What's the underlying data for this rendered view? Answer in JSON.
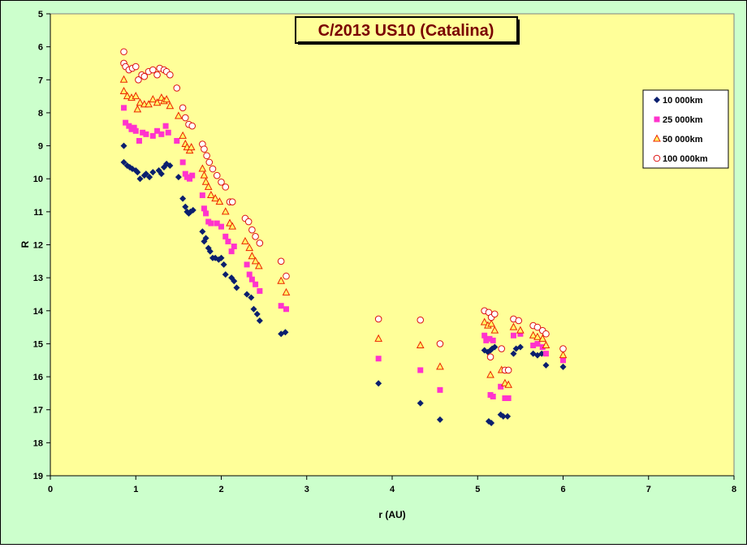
{
  "chart_data": {
    "type": "scatter",
    "title": "C/2013 US10 (Catalina)",
    "xlabel": "r (AU)",
    "ylabel": "R",
    "xlim": [
      0,
      8
    ],
    "ylim": [
      5,
      19
    ],
    "y_inverted": true,
    "x_ticks": [
      0,
      1,
      2,
      3,
      4,
      5,
      6,
      7,
      8
    ],
    "y_ticks": [
      5,
      6,
      7,
      8,
      9,
      10,
      11,
      12,
      13,
      14,
      15,
      16,
      17,
      18,
      19
    ],
    "grid": false,
    "legend_position": "top-right",
    "plot_background": "#ffff99",
    "outer_background": "#ccffcc",
    "series": [
      {
        "name": "10 000km",
        "marker": "diamond",
        "color": "#0a1f6e",
        "points": [
          [
            0.86,
            9.0
          ],
          [
            0.86,
            9.5
          ],
          [
            0.9,
            9.6
          ],
          [
            0.93,
            9.65
          ],
          [
            0.96,
            9.7
          ],
          [
            1.0,
            9.75
          ],
          [
            1.02,
            9.8
          ],
          [
            1.05,
            10.0
          ],
          [
            1.1,
            9.9
          ],
          [
            1.12,
            9.85
          ],
          [
            1.16,
            9.95
          ],
          [
            1.2,
            9.8
          ],
          [
            1.27,
            9.75
          ],
          [
            1.3,
            9.85
          ],
          [
            1.33,
            9.65
          ],
          [
            1.36,
            9.55
          ],
          [
            1.4,
            9.6
          ],
          [
            1.5,
            9.95
          ],
          [
            1.55,
            10.6
          ],
          [
            1.58,
            10.85
          ],
          [
            1.6,
            11.0
          ],
          [
            1.62,
            11.05
          ],
          [
            1.64,
            11.0
          ],
          [
            1.67,
            10.95
          ],
          [
            1.78,
            11.6
          ],
          [
            1.8,
            11.9
          ],
          [
            1.82,
            11.8
          ],
          [
            1.85,
            12.1
          ],
          [
            1.87,
            12.2
          ],
          [
            1.9,
            12.4
          ],
          [
            1.93,
            12.4
          ],
          [
            1.97,
            12.45
          ],
          [
            2.0,
            12.4
          ],
          [
            2.03,
            12.6
          ],
          [
            2.05,
            12.9
          ],
          [
            2.12,
            13.0
          ],
          [
            2.15,
            13.1
          ],
          [
            2.18,
            13.3
          ],
          [
            2.3,
            13.5
          ],
          [
            2.35,
            13.6
          ],
          [
            2.38,
            13.95
          ],
          [
            2.42,
            14.1
          ],
          [
            2.45,
            14.3
          ],
          [
            2.7,
            14.7
          ],
          [
            2.75,
            14.65
          ],
          [
            3.84,
            16.2
          ],
          [
            4.33,
            16.8
          ],
          [
            4.56,
            17.3
          ],
          [
            5.08,
            15.2
          ],
          [
            5.12,
            15.25
          ],
          [
            5.15,
            15.2
          ],
          [
            5.17,
            15.15
          ],
          [
            5.2,
            15.1
          ],
          [
            5.16,
            17.4
          ],
          [
            5.13,
            17.35
          ],
          [
            5.27,
            17.15
          ],
          [
            5.3,
            17.2
          ],
          [
            5.35,
            17.2
          ],
          [
            5.42,
            15.3
          ],
          [
            5.45,
            15.15
          ],
          [
            5.5,
            15.1
          ],
          [
            5.65,
            15.3
          ],
          [
            5.7,
            15.35
          ],
          [
            5.75,
            15.3
          ],
          [
            5.8,
            15.65
          ],
          [
            6.0,
            15.7
          ]
        ]
      },
      {
        "name": "25 000km",
        "marker": "square",
        "color": "#ff33cc",
        "points": [
          [
            0.86,
            7.85
          ],
          [
            0.88,
            8.3
          ],
          [
            0.92,
            8.4
          ],
          [
            0.95,
            8.5
          ],
          [
            0.98,
            8.45
          ],
          [
            1.0,
            8.55
          ],
          [
            1.04,
            8.85
          ],
          [
            1.08,
            8.6
          ],
          [
            1.12,
            8.65
          ],
          [
            1.2,
            8.7
          ],
          [
            1.25,
            8.55
          ],
          [
            1.3,
            8.65
          ],
          [
            1.35,
            8.4
          ],
          [
            1.38,
            8.6
          ],
          [
            1.48,
            8.85
          ],
          [
            1.55,
            9.5
          ],
          [
            1.58,
            9.85
          ],
          [
            1.6,
            9.95
          ],
          [
            1.63,
            10.0
          ],
          [
            1.66,
            9.9
          ],
          [
            1.78,
            10.5
          ],
          [
            1.8,
            10.9
          ],
          [
            1.82,
            11.05
          ],
          [
            1.85,
            11.3
          ],
          [
            1.88,
            11.35
          ],
          [
            1.95,
            11.35
          ],
          [
            2.0,
            11.45
          ],
          [
            2.05,
            11.75
          ],
          [
            2.08,
            11.9
          ],
          [
            2.12,
            12.2
          ],
          [
            2.15,
            12.05
          ],
          [
            2.3,
            12.6
          ],
          [
            2.33,
            12.9
          ],
          [
            2.36,
            13.05
          ],
          [
            2.4,
            13.2
          ],
          [
            2.45,
            13.4
          ],
          [
            2.7,
            13.85
          ],
          [
            2.76,
            13.95
          ],
          [
            3.84,
            15.45
          ],
          [
            4.33,
            15.8
          ],
          [
            4.56,
            16.4
          ],
          [
            5.08,
            14.75
          ],
          [
            5.1,
            14.9
          ],
          [
            5.14,
            14.85
          ],
          [
            5.18,
            14.9
          ],
          [
            5.15,
            16.55
          ],
          [
            5.18,
            16.6
          ],
          [
            5.27,
            16.3
          ],
          [
            5.32,
            16.65
          ],
          [
            5.36,
            16.65
          ],
          [
            5.42,
            14.75
          ],
          [
            5.5,
            14.7
          ],
          [
            5.65,
            15.05
          ],
          [
            5.7,
            15.0
          ],
          [
            5.76,
            15.1
          ],
          [
            5.8,
            15.3
          ],
          [
            6.0,
            15.5
          ]
        ]
      },
      {
        "name": "50 000km",
        "marker": "triangle",
        "color": "#ee2200",
        "points": [
          [
            0.86,
            7.0
          ],
          [
            0.86,
            7.35
          ],
          [
            0.9,
            7.5
          ],
          [
            0.95,
            7.55
          ],
          [
            1.0,
            7.5
          ],
          [
            1.02,
            7.9
          ],
          [
            1.05,
            7.7
          ],
          [
            1.1,
            7.75
          ],
          [
            1.15,
            7.75
          ],
          [
            1.2,
            7.6
          ],
          [
            1.25,
            7.7
          ],
          [
            1.3,
            7.55
          ],
          [
            1.33,
            7.65
          ],
          [
            1.36,
            7.6
          ],
          [
            1.4,
            7.8
          ],
          [
            1.5,
            8.1
          ],
          [
            1.55,
            8.7
          ],
          [
            1.58,
            8.95
          ],
          [
            1.6,
            9.05
          ],
          [
            1.63,
            9.15
          ],
          [
            1.65,
            9.05
          ],
          [
            1.78,
            9.7
          ],
          [
            1.8,
            9.9
          ],
          [
            1.82,
            10.1
          ],
          [
            1.85,
            10.25
          ],
          [
            1.88,
            10.5
          ],
          [
            1.93,
            10.6
          ],
          [
            1.98,
            10.7
          ],
          [
            2.05,
            11.0
          ],
          [
            2.1,
            11.35
          ],
          [
            2.13,
            11.45
          ],
          [
            2.28,
            11.9
          ],
          [
            2.33,
            12.1
          ],
          [
            2.36,
            12.35
          ],
          [
            2.4,
            12.5
          ],
          [
            2.44,
            12.65
          ],
          [
            2.7,
            13.1
          ],
          [
            2.76,
            13.45
          ],
          [
            3.84,
            14.85
          ],
          [
            4.33,
            15.05
          ],
          [
            4.56,
            15.7
          ],
          [
            5.08,
            14.35
          ],
          [
            5.12,
            14.45
          ],
          [
            5.16,
            14.4
          ],
          [
            5.2,
            14.6
          ],
          [
            5.15,
            15.95
          ],
          [
            5.28,
            15.8
          ],
          [
            5.32,
            16.2
          ],
          [
            5.36,
            16.25
          ],
          [
            5.42,
            14.5
          ],
          [
            5.5,
            14.6
          ],
          [
            5.65,
            14.75
          ],
          [
            5.7,
            14.8
          ],
          [
            5.76,
            14.85
          ],
          [
            5.8,
            15.05
          ],
          [
            6.0,
            15.35
          ]
        ]
      },
      {
        "name": "100 000km",
        "marker": "circle",
        "color": "#dd1111",
        "points": [
          [
            0.86,
            6.15
          ],
          [
            0.86,
            6.5
          ],
          [
            0.88,
            6.6
          ],
          [
            0.92,
            6.7
          ],
          [
            0.96,
            6.65
          ],
          [
            1.0,
            6.6
          ],
          [
            1.03,
            7.0
          ],
          [
            1.07,
            6.85
          ],
          [
            1.1,
            6.9
          ],
          [
            1.15,
            6.75
          ],
          [
            1.2,
            6.7
          ],
          [
            1.25,
            6.85
          ],
          [
            1.28,
            6.65
          ],
          [
            1.33,
            6.7
          ],
          [
            1.36,
            6.75
          ],
          [
            1.4,
            6.85
          ],
          [
            1.48,
            7.25
          ],
          [
            1.55,
            7.85
          ],
          [
            1.58,
            8.15
          ],
          [
            1.62,
            8.35
          ],
          [
            1.66,
            8.4
          ],
          [
            1.78,
            8.95
          ],
          [
            1.8,
            9.1
          ],
          [
            1.83,
            9.3
          ],
          [
            1.86,
            9.5
          ],
          [
            1.9,
            9.7
          ],
          [
            1.95,
            9.9
          ],
          [
            2.0,
            10.1
          ],
          [
            2.05,
            10.25
          ],
          [
            2.1,
            10.7
          ],
          [
            2.13,
            10.7
          ],
          [
            2.28,
            11.2
          ],
          [
            2.32,
            11.3
          ],
          [
            2.36,
            11.55
          ],
          [
            2.4,
            11.75
          ],
          [
            2.45,
            11.95
          ],
          [
            2.7,
            12.5
          ],
          [
            2.76,
            12.95
          ],
          [
            3.84,
            14.25
          ],
          [
            4.33,
            14.28
          ],
          [
            4.56,
            15.0
          ],
          [
            5.08,
            14.0
          ],
          [
            5.13,
            14.05
          ],
          [
            5.16,
            14.2
          ],
          [
            5.2,
            14.1
          ],
          [
            5.15,
            15.4
          ],
          [
            5.28,
            15.15
          ],
          [
            5.32,
            15.8
          ],
          [
            5.36,
            15.8
          ],
          [
            5.42,
            14.25
          ],
          [
            5.48,
            14.3
          ],
          [
            5.65,
            14.45
          ],
          [
            5.7,
            14.5
          ],
          [
            5.76,
            14.6
          ],
          [
            5.8,
            14.7
          ],
          [
            6.0,
            15.15
          ]
        ]
      }
    ]
  }
}
